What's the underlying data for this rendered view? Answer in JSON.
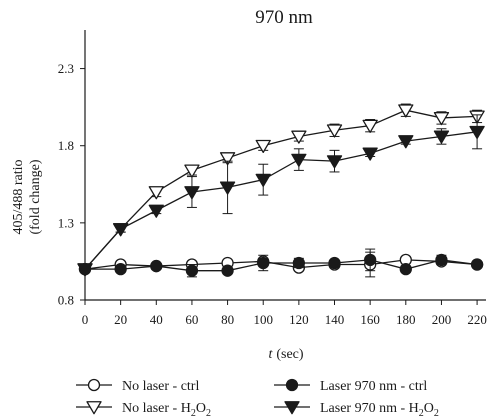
{
  "chart_data": {
    "type": "line",
    "title": "970 nm",
    "xlabel_var": "t",
    "xlabel_unit": "(sec)",
    "ylabel_line1": "405/488 ratio",
    "ylabel_line2": "(fold change)",
    "x": [
      0,
      20,
      40,
      60,
      80,
      100,
      120,
      140,
      160,
      180,
      200,
      220
    ],
    "x_ticks": [
      "0",
      "20",
      "40",
      "60",
      "80",
      "100",
      "120",
      "140",
      "160",
      "180",
      "200",
      "220"
    ],
    "y_ticks": [
      {
        "v": 0.8,
        "label": "0.8"
      },
      {
        "v": 1.3,
        "label": "1.3"
      },
      {
        "v": 1.8,
        "label": "1.8"
      },
      {
        "v": 2.3,
        "label": "2.3"
      }
    ],
    "xlim": [
      0,
      225
    ],
    "ylim": [
      0.8,
      2.55
    ],
    "grid": false,
    "legend_position": "bottom",
    "series": [
      {
        "name": "No laser - ctrl",
        "legend_main": "No laser - ctrl",
        "legend_sub": "",
        "legend_tail": "",
        "marker": "circle-open",
        "values": [
          1.0,
          1.03,
          1.02,
          1.03,
          1.04,
          1.05,
          1.01,
          1.03,
          1.03,
          1.06,
          1.05,
          1.03
        ],
        "err": [
          0.0,
          0.02,
          0.02,
          0.02,
          0.02,
          0.02,
          0.02,
          0.02,
          0.08,
          0.02,
          0.02,
          0.02
        ]
      },
      {
        "name": "No laser - H2O2",
        "legend_main": "No laser - H",
        "legend_sub": "2",
        "legend_tail": "O",
        "legend_sub2": "2",
        "marker": "triangle-down-open",
        "values": [
          1.0,
          1.26,
          1.5,
          1.64,
          1.72,
          1.8,
          1.86,
          1.9,
          1.93,
          2.03,
          1.98,
          1.99
        ],
        "err": [
          0.0,
          0.02,
          0.03,
          0.03,
          0.03,
          0.03,
          0.03,
          0.04,
          0.04,
          0.04,
          0.04,
          0.04
        ]
      },
      {
        "name": "Laser 970 nm - ctrl",
        "legend_main": "Laser 970 nm - ctrl",
        "legend_sub": "",
        "legend_tail": "",
        "marker": "circle-filled",
        "values": [
          1.0,
          1.0,
          1.02,
          0.99,
          0.99,
          1.04,
          1.04,
          1.04,
          1.06,
          1.0,
          1.06,
          1.03
        ],
        "err": [
          0.0,
          0.02,
          0.02,
          0.04,
          0.02,
          0.05,
          0.03,
          0.02,
          0.07,
          0.02,
          0.03,
          0.02
        ]
      },
      {
        "name": "Laser 970 nm - H2O2",
        "legend_main": "Laser 970 nm - H",
        "legend_sub": "2",
        "legend_tail": "O",
        "legend_sub2": "2",
        "marker": "triangle-down-filled",
        "values": [
          1.0,
          1.26,
          1.38,
          1.5,
          1.53,
          1.58,
          1.71,
          1.7,
          1.75,
          1.83,
          1.86,
          1.89
        ],
        "err": [
          0.0,
          0.02,
          0.02,
          0.1,
          0.17,
          0.1,
          0.07,
          0.07,
          0.02,
          0.02,
          0.05,
          0.11
        ]
      }
    ]
  }
}
